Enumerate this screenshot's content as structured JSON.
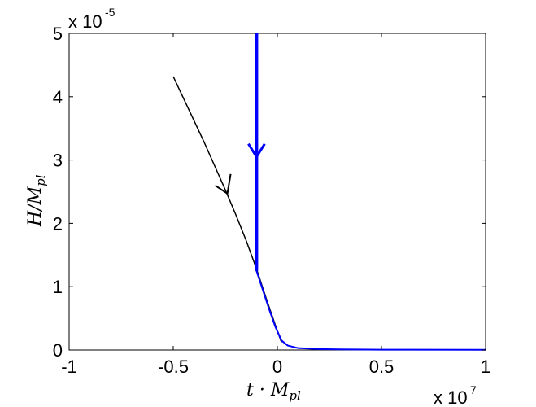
{
  "chart_data": {
    "type": "line",
    "title": "",
    "xlabel": "t · M",
    "xlabel_sub": "pl",
    "ylabel": "H/M",
    "ylabel_sub": "pl",
    "x_multiplier": {
      "base": "x 10",
      "exponent": "7"
    },
    "y_multiplier": {
      "base": "x 10",
      "exponent": "-5"
    },
    "xlim": [
      -1,
      1
    ],
    "ylim": [
      0,
      5
    ],
    "x_ticks": [
      -1,
      -0.5,
      0,
      0.5,
      1
    ],
    "x_tick_labels": [
      "-1",
      "-0.5",
      "0",
      "0.5",
      "1"
    ],
    "y_ticks": [
      0,
      1,
      2,
      3,
      4,
      5
    ],
    "y_tick_labels": [
      "0",
      "1",
      "2",
      "3",
      "4",
      "5"
    ],
    "grid": false,
    "legend": "none",
    "series": [
      {
        "color": "#000000",
        "x": [
          -0.5,
          -0.45,
          -0.4,
          -0.35,
          -0.3,
          -0.25,
          -0.2,
          -0.15,
          -0.1,
          -0.05,
          0,
          0.02
        ],
        "y": [
          4.32,
          3.97,
          3.62,
          3.27,
          2.9,
          2.53,
          2.14,
          1.73,
          1.28,
          0.78,
          0.3,
          0.12
        ],
        "arrow_at": {
          "x": -0.24,
          "y": 2.47,
          "direction": "down"
        }
      },
      {
        "color": "#0000ff",
        "x": [
          -0.1,
          -0.1,
          -0.1,
          -0.07,
          -0.04,
          -0.01,
          0.02,
          0.05,
          0.1,
          0.2,
          0.3,
          0.5,
          1.0
        ],
        "y": [
          5.0,
          2.0,
          1.25,
          0.95,
          0.65,
          0.37,
          0.15,
          0.07,
          0.03,
          0.015,
          0.01,
          0.005,
          0.003
        ],
        "arrow_at": {
          "x": -0.1,
          "y": 3.05,
          "direction": "down"
        }
      }
    ]
  }
}
